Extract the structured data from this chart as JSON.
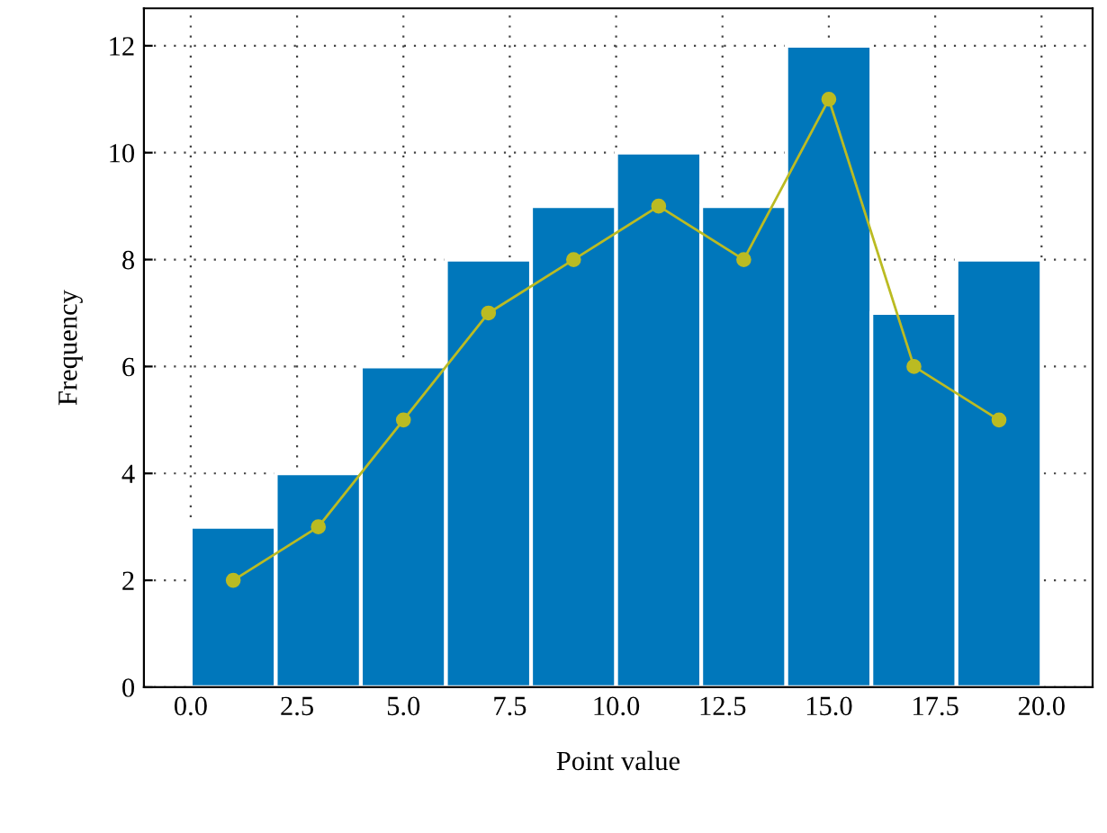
{
  "chart_data": {
    "type": "histogram",
    "xlabel": "Point value",
    "ylabel": "Frequency",
    "bins": [
      0,
      2,
      4,
      6,
      8,
      10,
      12,
      14,
      16,
      18,
      20
    ],
    "series": [
      {
        "color": "#0077bb",
        "values": [
          3,
          4,
          6,
          8,
          9,
          10,
          9,
          12,
          7,
          8
        ]
      },
      {
        "type": "line",
        "color": "#bbbb22",
        "x": [
          1,
          3,
          5,
          7,
          9,
          11,
          13,
          15,
          17,
          19
        ],
        "values": [
          2,
          3,
          5,
          7,
          8,
          9,
          8,
          11,
          6,
          5
        ],
        "marker": "circle",
        "line_style": "solid"
      }
    ],
    "xlim": [
      -1.1,
      21.2
    ],
    "ylim": [
      0,
      12.7
    ],
    "xticks": [
      {
        "value": 0,
        "label": "0.0"
      },
      {
        "value": 2.5,
        "label": "2.5"
      },
      {
        "value": 5,
        "label": "5.0"
      },
      {
        "value": 7.5,
        "label": "7.5"
      },
      {
        "value": 10,
        "label": "10.0"
      },
      {
        "value": 12.5,
        "label": "12.5"
      },
      {
        "value": 15,
        "label": "15.0"
      },
      {
        "value": 17.5,
        "label": "17.5"
      },
      {
        "value": 20,
        "label": "20.0"
      }
    ],
    "yticks": [
      0,
      2,
      4,
      6,
      8,
      10,
      12
    ],
    "grid": true
  }
}
